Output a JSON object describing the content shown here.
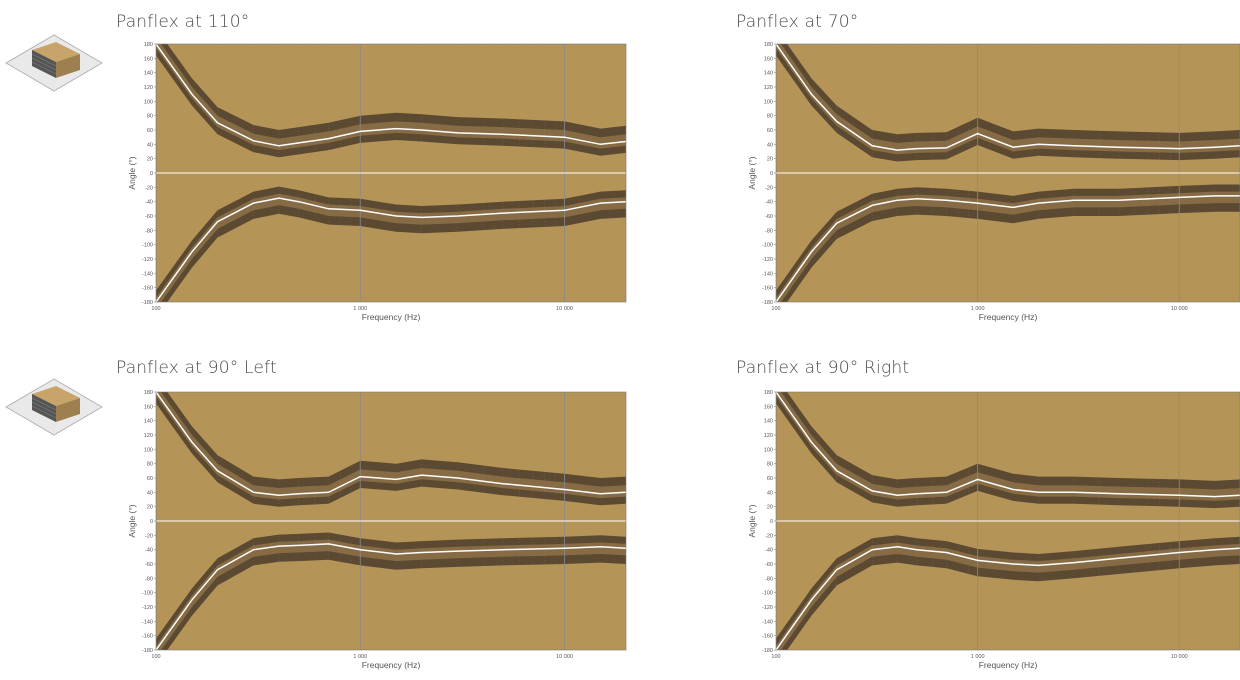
{
  "colors": {
    "background_fill": "#b59458",
    "contour_mid": "#866b44",
    "contour_dark": "#5b4a31",
    "contour_line": "#ffffff",
    "zero_band": "#ffffff",
    "grid": "#8a8a8a"
  },
  "chart_data": [
    {
      "type": "heatmap",
      "title": "Panflex at 110°",
      "xlabel": "Frequency (Hz)",
      "ylabel": "Angle (°)",
      "xscale": "log",
      "xlim": [
        100,
        20000
      ],
      "ylim": [
        -180,
        180
      ],
      "x_ticks": [
        "100",
        "1 000",
        "10 000"
      ],
      "y_ticks": [
        "180",
        "160",
        "140",
        "120",
        "100",
        "80",
        "60",
        "40",
        "20",
        "0",
        "-20",
        "-40",
        "-60",
        "-80",
        "-100",
        "-120",
        "-140",
        "-160",
        "-180"
      ],
      "contour": {
        "frequency": [
          100,
          150,
          200,
          300,
          400,
          500,
          700,
          1000,
          1500,
          2000,
          3000,
          5000,
          10000,
          15000,
          20000
        ],
        "upper_line_angle": [
          180,
          110,
          70,
          45,
          38,
          42,
          48,
          58,
          62,
          60,
          56,
          54,
          50,
          40,
          44
        ],
        "lower_line_angle": [
          -180,
          -110,
          -68,
          -42,
          -35,
          -40,
          -50,
          -52,
          -60,
          -62,
          -60,
          -56,
          -52,
          -42,
          -40
        ]
      }
    },
    {
      "type": "heatmap",
      "title": "Panflex at 70°",
      "xlabel": "Frequency (Hz)",
      "ylabel": "Angle (°)",
      "xscale": "log",
      "xlim": [
        100,
        20000
      ],
      "ylim": [
        -180,
        180
      ],
      "x_ticks": [
        "100",
        "1 000",
        "10 000"
      ],
      "y_ticks": [
        "180",
        "160",
        "140",
        "120",
        "100",
        "80",
        "60",
        "40",
        "20",
        "0",
        "-20",
        "-40",
        "-60",
        "-80",
        "-100",
        "-120",
        "-140",
        "-160",
        "-180"
      ],
      "contour": {
        "frequency": [
          100,
          150,
          200,
          300,
          400,
          500,
          700,
          1000,
          1500,
          2000,
          3000,
          5000,
          10000,
          15000,
          20000
        ],
        "upper_line_angle": [
          180,
          110,
          72,
          38,
          32,
          34,
          35,
          55,
          36,
          40,
          38,
          36,
          34,
          36,
          38
        ],
        "lower_line_angle": [
          -180,
          -110,
          -70,
          -45,
          -38,
          -36,
          -38,
          -42,
          -48,
          -42,
          -38,
          -38,
          -34,
          -32,
          -32
        ]
      }
    },
    {
      "type": "heatmap",
      "title": "Panflex at 90° Left",
      "xlabel": "Frequency (Hz)",
      "ylabel": "Angle (°)",
      "xscale": "log",
      "xlim": [
        100,
        20000
      ],
      "ylim": [
        -180,
        180
      ],
      "x_ticks": [
        "100",
        "1 000",
        "10 000"
      ],
      "y_ticks": [
        "180",
        "160",
        "140",
        "120",
        "100",
        "80",
        "60",
        "40",
        "20",
        "0",
        "-20",
        "-40",
        "-60",
        "-80",
        "-100",
        "-120",
        "-140",
        "-160",
        "-180"
      ],
      "contour": {
        "frequency": [
          100,
          150,
          200,
          300,
          400,
          500,
          700,
          1000,
          1500,
          2000,
          3000,
          5000,
          10000,
          15000,
          20000
        ],
        "upper_line_angle": [
          180,
          110,
          70,
          40,
          36,
          38,
          40,
          62,
          58,
          64,
          60,
          52,
          44,
          38,
          40
        ],
        "lower_line_angle": [
          -180,
          -110,
          -68,
          -40,
          -35,
          -34,
          -32,
          -40,
          -46,
          -44,
          -42,
          -40,
          -38,
          -36,
          -38
        ]
      }
    },
    {
      "type": "heatmap",
      "title": "Panflex at 90° Right",
      "xlabel": "Frequency (Hz)",
      "ylabel": "Angle (°)",
      "xscale": "log",
      "xlim": [
        100,
        20000
      ],
      "ylim": [
        -180,
        180
      ],
      "x_ticks": [
        "100",
        "1 000",
        "10 000"
      ],
      "y_ticks": [
        "180",
        "160",
        "140",
        "120",
        "100",
        "80",
        "60",
        "40",
        "20",
        "0",
        "-20",
        "-40",
        "-60",
        "-80",
        "-100",
        "-120",
        "-140",
        "-160",
        "-180"
      ],
      "contour": {
        "frequency": [
          100,
          150,
          200,
          300,
          400,
          500,
          700,
          1000,
          1500,
          2000,
          3000,
          5000,
          10000,
          15000,
          20000
        ],
        "upper_line_angle": [
          180,
          110,
          70,
          42,
          36,
          38,
          40,
          58,
          44,
          40,
          40,
          38,
          36,
          34,
          36
        ],
        "lower_line_angle": [
          -180,
          -110,
          -68,
          -40,
          -36,
          -40,
          -44,
          -55,
          -60,
          -62,
          -58,
          -52,
          -44,
          -40,
          -38
        ]
      }
    }
  ]
}
